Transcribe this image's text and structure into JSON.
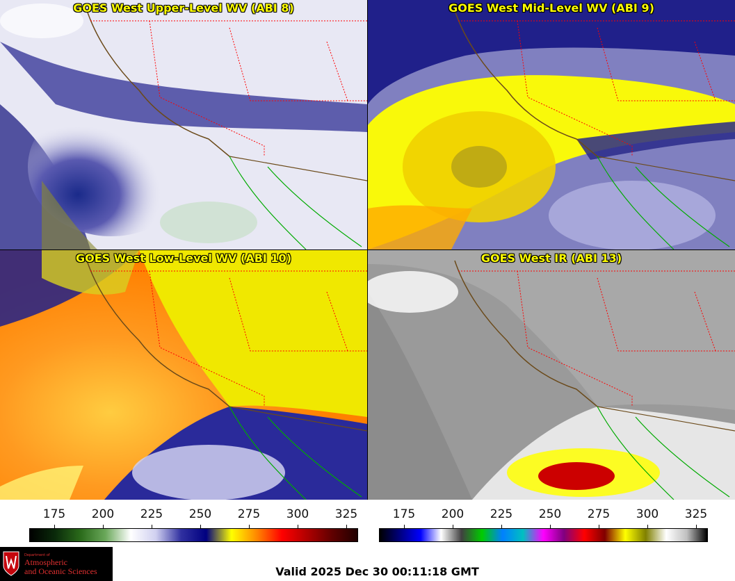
{
  "panels": [
    {
      "title": "GOES West Upper-Level WV (ABI 8)"
    },
    {
      "title": "GOES West Mid-Level WV (ABI 9)"
    },
    {
      "title": "GOES West Low-Level WV (ABI 10)"
    },
    {
      "title": "GOES West IR (ABI 13)"
    }
  ],
  "colorbars": {
    "wv": {
      "ticks": [
        "175",
        "200",
        "225",
        "250",
        "275",
        "300",
        "325"
      ],
      "palette": [
        "#000000",
        "#0a2a0a",
        "#2a6a1a",
        "#6aa85a",
        "#ffffff",
        "#d0d0f0",
        "#3030a0",
        "#000080",
        "#ffff00",
        "#ff8800",
        "#ff0000",
        "#b00000",
        "#600000",
        "#200000"
      ]
    },
    "ir": {
      "ticks": [
        "175",
        "200",
        "225",
        "250",
        "275",
        "300",
        "325"
      ],
      "palette": [
        "#000000",
        "#000080",
        "#0000ff",
        "#ffffff",
        "#404040",
        "#00cc00",
        "#0080ff",
        "#00c0c0",
        "#ff00ff",
        "#800080",
        "#ff0000",
        "#800000",
        "#ffff00",
        "#808000",
        "#ffffff",
        "#c0c0c0",
        "#000000"
      ]
    }
  },
  "logo": {
    "department": "Department of",
    "line1": "Atmospheric",
    "line2": "and Oceanic Sciences"
  },
  "valid_time": "Valid 2025 Dec 30 00:11:18 GMT",
  "colors": {
    "title": "#ffff00",
    "state_borders": "#ff0000",
    "coast": "#6b4a1a",
    "mexico": "#00aa00"
  }
}
